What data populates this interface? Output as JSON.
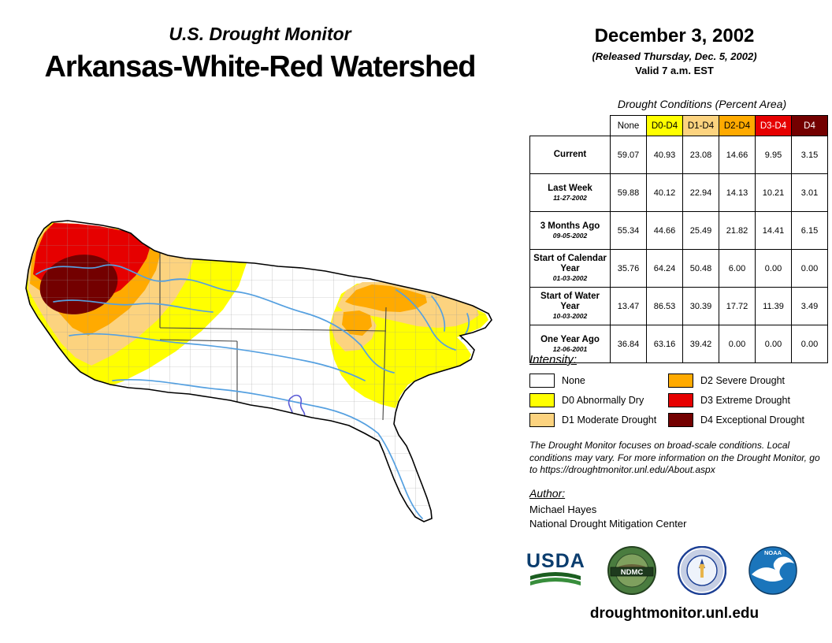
{
  "header": {
    "program": "U.S. Drought Monitor",
    "region": "Arkansas-White-Red Watershed",
    "date": "December 3, 2002",
    "released": "(Released Thursday, Dec. 5, 2002)",
    "valid": "Valid 7 a.m. EST"
  },
  "table": {
    "caption": "Drought Conditions (Percent Area)",
    "columns": [
      {
        "label": "None",
        "bg": "#ffffff",
        "fg": "#000000"
      },
      {
        "label": "D0-D4",
        "bg": "#ffff00",
        "fg": "#000000"
      },
      {
        "label": "D1-D4",
        "bg": "#fcd37f",
        "fg": "#000000"
      },
      {
        "label": "D2-D4",
        "bg": "#ffaa00",
        "fg": "#000000"
      },
      {
        "label": "D3-D4",
        "bg": "#e60000",
        "fg": "#ffffff"
      },
      {
        "label": "D4",
        "bg": "#730000",
        "fg": "#ffffff"
      }
    ],
    "rows": [
      {
        "label": "Current",
        "date": "",
        "values": [
          "59.07",
          "40.93",
          "23.08",
          "14.66",
          "9.95",
          "3.15"
        ]
      },
      {
        "label": "Last Week",
        "date": "11-27-2002",
        "values": [
          "59.88",
          "40.12",
          "22.94",
          "14.13",
          "10.21",
          "3.01"
        ]
      },
      {
        "label": "3 Months Ago",
        "date": "09-05-2002",
        "values": [
          "55.34",
          "44.66",
          "25.49",
          "21.82",
          "14.41",
          "6.15"
        ]
      },
      {
        "label": "Start of Calendar Year",
        "date": "01-03-2002",
        "values": [
          "35.76",
          "64.24",
          "50.48",
          "6.00",
          "0.00",
          "0.00"
        ]
      },
      {
        "label": "Start of Water Year",
        "date": "10-03-2002",
        "values": [
          "13.47",
          "86.53",
          "30.39",
          "17.72",
          "11.39",
          "3.49"
        ]
      },
      {
        "label": "One Year Ago",
        "date": "12-06-2001",
        "values": [
          "36.84",
          "63.16",
          "39.42",
          "0.00",
          "0.00",
          "0.00"
        ]
      }
    ]
  },
  "legend": {
    "title": "Intensity:",
    "items": [
      {
        "label": "None",
        "color": "#ffffff"
      },
      {
        "label": "D0 Abnormally Dry",
        "color": "#ffff00"
      },
      {
        "label": "D1 Moderate Drought",
        "color": "#fcd37f"
      },
      {
        "label": "D2 Severe Drought",
        "color": "#ffaa00"
      },
      {
        "label": "D3 Extreme Drought",
        "color": "#e60000"
      },
      {
        "label": "D4 Exceptional Drought",
        "color": "#730000"
      }
    ]
  },
  "disclaimer": "The Drought Monitor focuses on broad-scale conditions. Local conditions may vary. For more information on the Drought Monitor, go to https://droughtmonitor.unl.edu/About.aspx",
  "author": {
    "title": "Author:",
    "name": "Michael Hayes",
    "org": "National Drought Mitigation Center"
  },
  "logos": {
    "usda": "USDA",
    "ndmc": "NDMC",
    "noaa": "NOAA"
  },
  "footer": {
    "url": "droughtmonitor.unl.edu"
  },
  "map": {
    "colors": {
      "none": "#ffffff",
      "d0": "#ffff00",
      "d1": "#fcd37f",
      "d2": "#ffaa00",
      "d3": "#e60000",
      "d4": "#730000",
      "river": "#55a0e0",
      "lake": "#5b5bd6"
    }
  }
}
